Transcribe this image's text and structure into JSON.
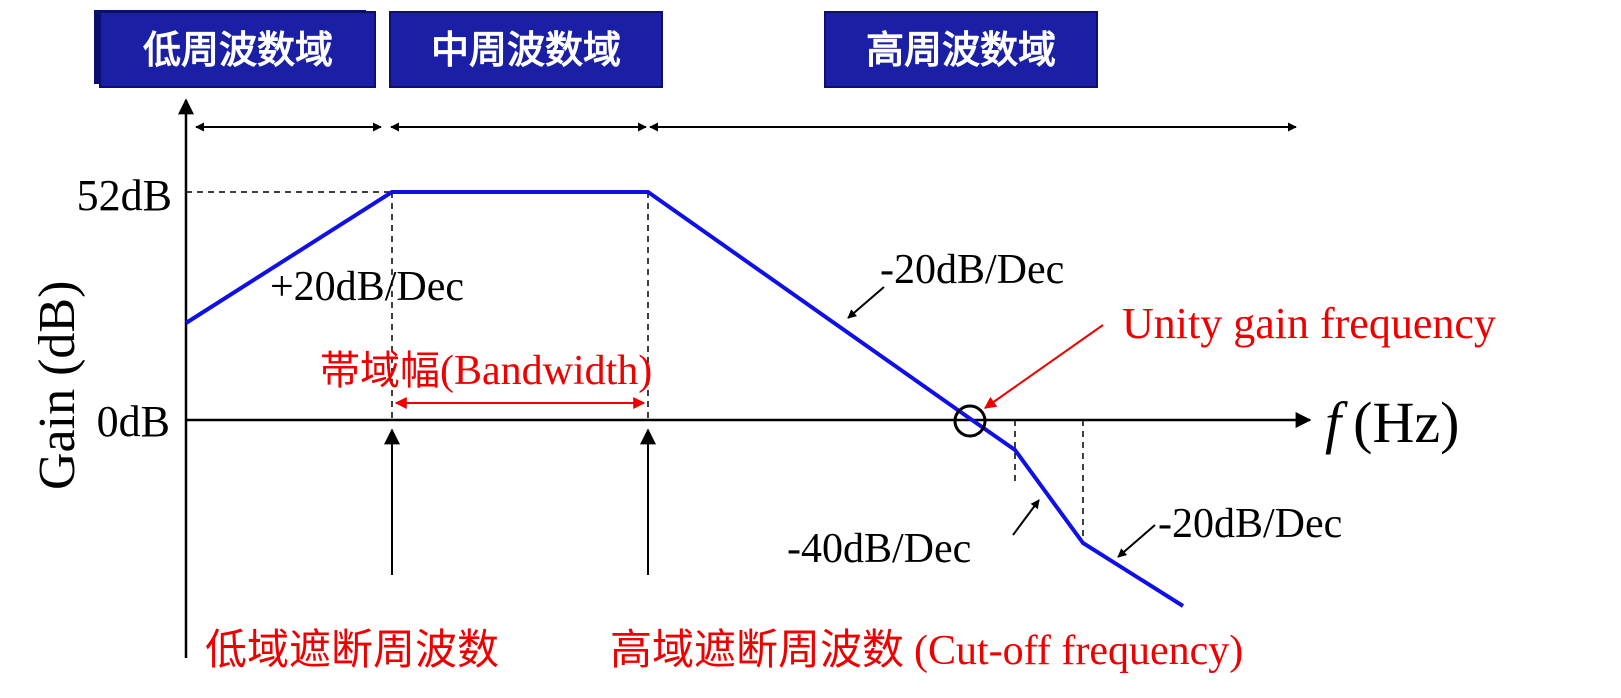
{
  "bands": {
    "low": "低周波数域",
    "mid": "中周波数域",
    "high": "高周波数域"
  },
  "axes": {
    "y_label": "Gain (dB)",
    "x_label_italic": "f",
    "x_label_unit": "(Hz)",
    "y_tick_top": "52dB",
    "y_tick_zero": "0dB"
  },
  "annotations": {
    "slope_rise": "+20dB/Dec",
    "slope_fall_1": "-20dB/Dec",
    "slope_fall_2": "-40dB/Dec",
    "slope_fall_3": "-20dB/Dec",
    "unity_gain": "Unity gain frequency",
    "bandwidth_jp": "帯域幅",
    "bandwidth_en": "(Bandwidth)",
    "low_cutoff_jp": "低域遮断周波数",
    "high_cutoff_jp": "高域遮断周波数",
    "cutoff_en": "(Cut-off frequency)"
  },
  "colors": {
    "curve": "#1010e6",
    "annotation_red": "#ee0000",
    "band_box": "#1a1fa6"
  },
  "chart_data": {
    "type": "line",
    "y_unit": "dB",
    "series": [
      {
        "values": [
          {
            "x": "low",
            "y": "rising +20dB/Dec"
          },
          {
            "x": "low cut-off",
            "y": 52
          },
          {
            "x": "high cut-off",
            "y": 52
          },
          {
            "x": "unity gain",
            "y": 0
          },
          {
            "x": "end",
            "y": "-20dB/Dec"
          }
        ]
      }
    ]
  }
}
